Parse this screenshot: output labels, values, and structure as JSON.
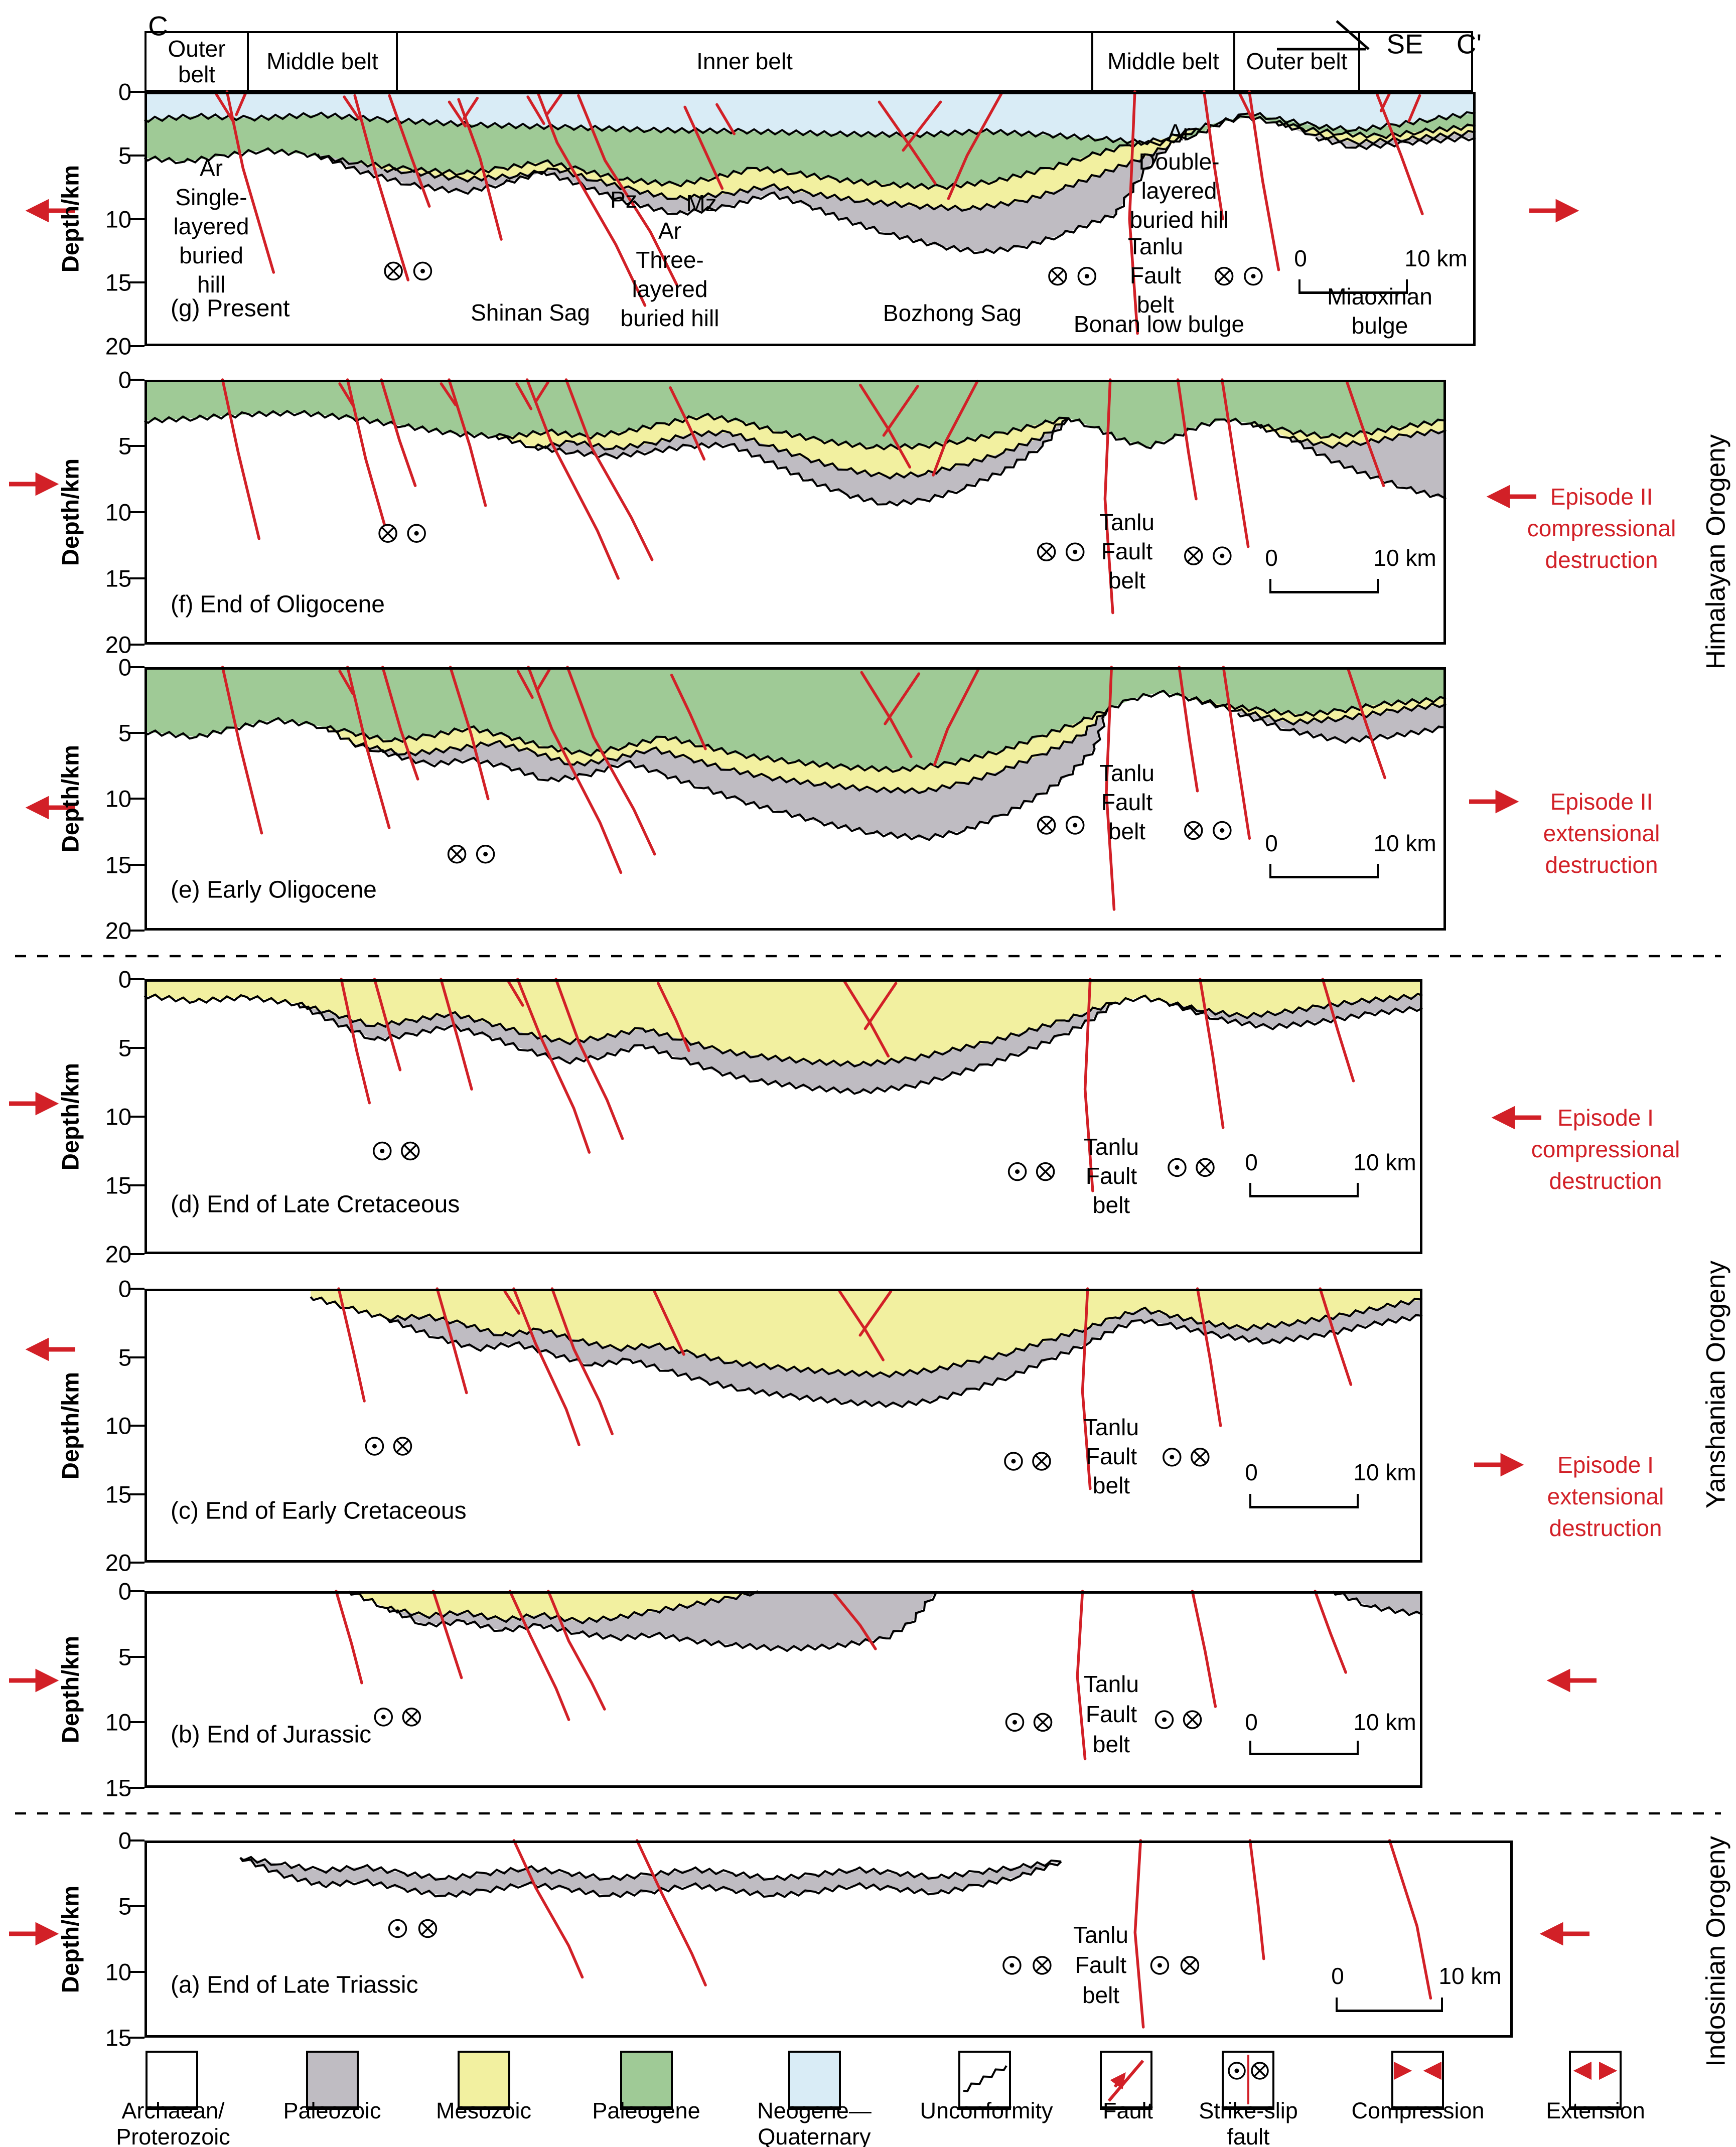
{
  "colors": {
    "red": "#d22027",
    "neogene": "#d9ecf6",
    "paleogene": "#9fca96",
    "mesozoic": "#f2f0a0",
    "paleozoic": "#bfbcc2",
    "archaean": "#ffffff",
    "ink": "#000000"
  },
  "header": {
    "section_start": "C",
    "section_end": "C'",
    "direction": "SE",
    "belts": [
      "Outer belt",
      "Middle belt",
      "Inner belt",
      "Middle belt",
      "Outer belt"
    ]
  },
  "axis_label": "Depth/km",
  "tanlu_belt": [
    "Tanlu",
    "Fault",
    "belt"
  ],
  "scale_bar": {
    "zero": "0",
    "ten": "10 km"
  },
  "panels": [
    {
      "id": "g",
      "caption": "(g) Present",
      "ticks": [
        "0",
        "5",
        "10",
        "15",
        "20"
      ],
      "annotations": {
        "single_hill": [
          "Ar",
          "Single-",
          "layered",
          "buried",
          "hill"
        ],
        "shinan": "Shinan Sag",
        "pz": "Pz",
        "mz": "Mz",
        "three_hill": [
          "Ar",
          "Three-",
          "layered",
          "buried hill"
        ],
        "bozhong": "Bozhong Sag",
        "double_hill": [
          "Ar",
          "Double-",
          "layered",
          "buried hill"
        ],
        "bonan": "Bonan low bulge",
        "miaoxinan": [
          "Miaoxinan",
          "bulge"
        ]
      }
    },
    {
      "id": "f",
      "caption": "(f) End of Oligocene",
      "ticks": [
        "0",
        "5",
        "10",
        "15",
        "20"
      ]
    },
    {
      "id": "e",
      "caption": "(e) Early Oligocene",
      "ticks": [
        "0",
        "5",
        "10",
        "15",
        "20"
      ]
    },
    {
      "id": "d",
      "caption": "(d) End of Late Cretaceous",
      "ticks": [
        "0",
        "5",
        "10",
        "15",
        "20"
      ]
    },
    {
      "id": "c",
      "caption": "(c) End of Early Cretaceous",
      "ticks": [
        "0",
        "5",
        "10",
        "15",
        "20"
      ]
    },
    {
      "id": "b",
      "caption": "(b) End of Jurassic",
      "ticks": [
        "0",
        "5",
        "10",
        "15"
      ]
    },
    {
      "id": "a",
      "caption": "(a) End of Late Triassic",
      "ticks": [
        "0",
        "5",
        "10",
        "15"
      ]
    }
  ],
  "episodes": {
    "ep2_comp": [
      "Episode II",
      "compressional",
      "destruction"
    ],
    "ep2_ext": [
      "Episode II",
      "extensional",
      "destruction"
    ],
    "ep1_comp": [
      "Episode I",
      "compressional",
      "destruction"
    ],
    "ep1_ext": [
      "Episode I",
      "extensional",
      "destruction"
    ]
  },
  "orogenies": {
    "himalayan": "Himalayan Orogeny",
    "yanshanian": "Yanshanian Orogeny",
    "indosinian": "Indosinian Orogeny"
  },
  "legend": {
    "items": [
      {
        "name": "archaean-proterozoic",
        "lines": [
          "Archaean/",
          "Proterozoic"
        ],
        "color": "#ffffff"
      },
      {
        "name": "paleozoic",
        "lines": [
          "Paleozoic"
        ],
        "color": "#bfbcc2"
      },
      {
        "name": "mesozoic",
        "lines": [
          "Mesozoic"
        ],
        "color": "#f2f0a0"
      },
      {
        "name": "paleogene",
        "lines": [
          "Paleogene"
        ],
        "color": "#9fca96"
      },
      {
        "name": "neogene-quaternary",
        "lines": [
          "Neogene—",
          "Quaternary"
        ],
        "color": "#d9ecf6"
      },
      {
        "name": "unconformity",
        "lines": [
          "Unconformity"
        ]
      },
      {
        "name": "fault",
        "lines": [
          "Fault"
        ]
      },
      {
        "name": "strike-slip-fault",
        "lines": [
          "Strike-slip",
          "fault"
        ]
      },
      {
        "name": "compression",
        "lines": [
          "Compression"
        ]
      },
      {
        "name": "extension",
        "lines": [
          "Extension"
        ]
      }
    ]
  }
}
